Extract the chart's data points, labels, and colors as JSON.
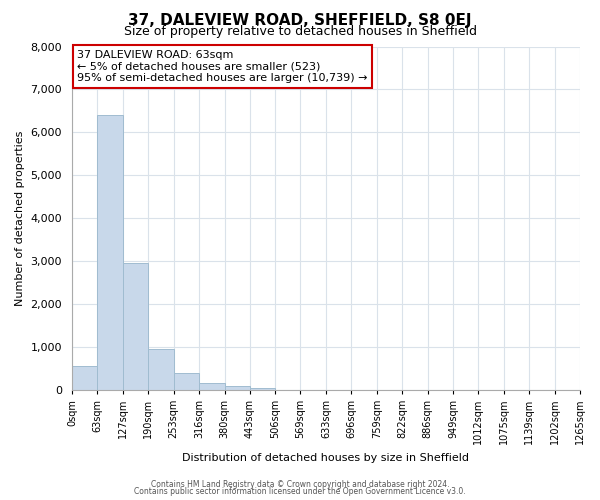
{
  "title": "37, DALEVIEW ROAD, SHEFFIELD, S8 0EJ",
  "subtitle": "Size of property relative to detached houses in Sheffield",
  "xlabel": "Distribution of detached houses by size in Sheffield",
  "ylabel": "Number of detached properties",
  "bin_edges": [
    0,
    63,
    127,
    190,
    253,
    316,
    380,
    443,
    506,
    569,
    633,
    696,
    759,
    822,
    886,
    949,
    1012,
    1075,
    1139,
    1202,
    1265
  ],
  "bar_heights": [
    550,
    6400,
    2950,
    950,
    380,
    150,
    80,
    30,
    0,
    0,
    0,
    0,
    0,
    0,
    0,
    0,
    0,
    0,
    0,
    0
  ],
  "bar_color": "#c8d8ea",
  "bar_edgecolor": "#a0bcd0",
  "ylim": [
    0,
    8000
  ],
  "yticks": [
    0,
    1000,
    2000,
    3000,
    4000,
    5000,
    6000,
    7000,
    8000
  ],
  "xtick_labels": [
    "0sqm",
    "63sqm",
    "127sqm",
    "190sqm",
    "253sqm",
    "316sqm",
    "380sqm",
    "443sqm",
    "506sqm",
    "569sqm",
    "633sqm",
    "696sqm",
    "759sqm",
    "822sqm",
    "886sqm",
    "949sqm",
    "1012sqm",
    "1075sqm",
    "1139sqm",
    "1202sqm",
    "1265sqm"
  ],
  "annotation_title": "37 DALEVIEW ROAD: 63sqm",
  "annotation_line2": "← 5% of detached houses are smaller (523)",
  "annotation_line3": "95% of semi-detached houses are larger (10,739) →",
  "annotation_box_color": "#ffffff",
  "annotation_box_edgecolor": "#cc0000",
  "grid_color": "#dae2ea",
  "background_color": "#ffffff",
  "footer_line1": "Contains HM Land Registry data © Crown copyright and database right 2024.",
  "footer_line2": "Contains public sector information licensed under the Open Government Licence v3.0."
}
